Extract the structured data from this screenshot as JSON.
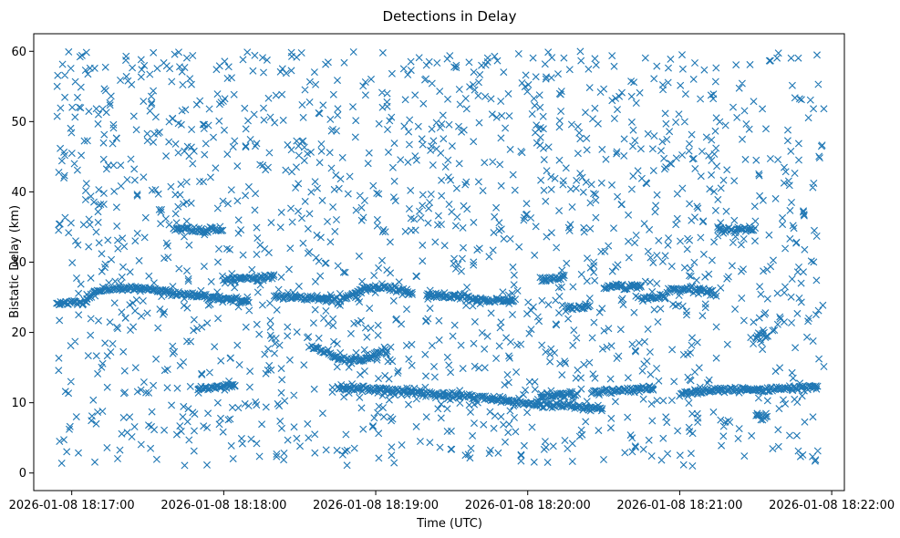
{
  "chart_data": {
    "type": "scatter",
    "title": "Detections in Delay",
    "xlabel": "Time (UTC)",
    "ylabel": "Bistatic Delay (km)",
    "marker": "x",
    "color": "#1f77b4",
    "grid": false,
    "legend": "none",
    "xlim": [
      "2026-01-08 18:16:45",
      "2026-01-08 18:22:05"
    ],
    "ylim": [
      -2.5,
      62.5
    ],
    "xticks": [
      "2026-01-08 18:17:00",
      "2026-01-08 18:18:00",
      "2026-01-08 18:19:00",
      "2026-01-08 18:20:00",
      "2026-01-08 18:21:00",
      "2026-01-08 18:22:00"
    ],
    "yticks": [
      0,
      10,
      20,
      30,
      40,
      50,
      60
    ],
    "x_start": "2026-01-08 18:16:54",
    "x_end": "2026-01-08 18:21:57",
    "tracks": [
      {
        "points": [
          [
            "2026-01-08 18:16:54",
            24.2
          ],
          [
            "2026-01-08 18:17:05",
            24.3
          ],
          [
            "2026-01-08 18:17:10",
            26.0
          ],
          [
            "2026-01-08 18:17:25",
            26.4
          ],
          [
            "2026-01-08 18:17:40",
            25.6
          ],
          [
            "2026-01-08 18:17:55",
            25.0
          ],
          [
            "2026-01-08 18:18:10",
            24.4
          ]
        ],
        "noise": 0.2
      },
      {
        "points": [
          [
            "2026-01-08 18:17:40",
            34.8
          ],
          [
            "2026-01-08 18:18:00",
            34.5
          ]
        ],
        "noise": 0.2
      },
      {
        "points": [
          [
            "2026-01-08 18:17:50",
            12.0
          ],
          [
            "2026-01-08 18:18:05",
            12.5
          ]
        ],
        "noise": 0.15
      },
      {
        "points": [
          [
            "2026-01-08 18:18:00",
            27.4
          ],
          [
            "2026-01-08 18:18:20",
            28.0
          ]
        ],
        "noise": 0.2
      },
      {
        "points": [
          [
            "2026-01-08 18:18:20",
            25.2
          ],
          [
            "2026-01-08 18:18:45",
            24.8
          ]
        ],
        "noise": 0.2
      },
      {
        "points": [
          [
            "2026-01-08 18:18:35",
            18.0
          ],
          [
            "2026-01-08 18:18:45",
            16.3
          ],
          [
            "2026-01-08 18:18:55",
            16.1
          ],
          [
            "2026-01-08 18:19:05",
            17.8
          ]
        ],
        "noise": 0.2
      },
      {
        "points": [
          [
            "2026-01-08 18:18:45",
            24.3
          ],
          [
            "2026-01-08 18:18:55",
            26.2
          ],
          [
            "2026-01-08 18:19:05",
            26.5
          ],
          [
            "2026-01-08 18:19:15",
            25.4
          ]
        ],
        "noise": 0.2
      },
      {
        "points": [
          [
            "2026-01-08 18:18:45",
            12.2
          ],
          [
            "2026-01-08 18:19:10",
            11.7
          ],
          [
            "2026-01-08 18:19:35",
            10.9
          ],
          [
            "2026-01-08 18:19:55",
            10.2
          ],
          [
            "2026-01-08 18:20:10",
            9.6
          ]
        ],
        "noise": 0.25
      },
      {
        "points": [
          [
            "2026-01-08 18:19:20",
            25.3
          ],
          [
            "2026-01-08 18:19:40",
            25.0
          ]
        ],
        "noise": 0.2
      },
      {
        "points": [
          [
            "2026-01-08 18:19:40",
            24.6
          ],
          [
            "2026-01-08 18:19:55",
            24.5
          ]
        ],
        "noise": 0.15
      },
      {
        "points": [
          [
            "2026-01-08 18:20:05",
            27.6
          ],
          [
            "2026-01-08 18:20:15",
            27.9
          ]
        ],
        "noise": 0.2
      },
      {
        "points": [
          [
            "2026-01-08 18:20:15",
            23.5
          ],
          [
            "2026-01-08 18:20:25",
            23.8
          ]
        ],
        "noise": 0.2
      },
      {
        "points": [
          [
            "2026-01-08 18:20:05",
            11.0
          ],
          [
            "2026-01-08 18:20:20",
            11.3
          ]
        ],
        "noise": 0.2
      },
      {
        "points": [
          [
            "2026-01-08 18:20:10",
            9.8
          ],
          [
            "2026-01-08 18:20:30",
            9.1
          ]
        ],
        "noise": 0.2
      },
      {
        "points": [
          [
            "2026-01-08 18:20:30",
            26.5
          ],
          [
            "2026-01-08 18:20:45",
            26.5
          ]
        ],
        "noise": 0.2
      },
      {
        "points": [
          [
            "2026-01-08 18:20:25",
            11.5
          ],
          [
            "2026-01-08 18:20:50",
            12.0
          ]
        ],
        "noise": 0.2
      },
      {
        "points": [
          [
            "2026-01-08 18:20:45",
            24.8
          ],
          [
            "2026-01-08 18:20:55",
            25.0
          ]
        ],
        "noise": 0.2
      },
      {
        "points": [
          [
            "2026-01-08 18:20:55",
            26.0
          ],
          [
            "2026-01-08 18:21:05",
            26.2
          ],
          [
            "2026-01-08 18:21:15",
            25.4
          ]
        ],
        "noise": 0.3
      },
      {
        "points": [
          [
            "2026-01-08 18:21:00",
            11.4
          ],
          [
            "2026-01-08 18:21:20",
            11.8
          ],
          [
            "2026-01-08 18:21:40",
            12.0
          ],
          [
            "2026-01-08 18:21:55",
            12.3
          ]
        ],
        "noise": 0.2
      },
      {
        "points": [
          [
            "2026-01-08 18:21:15",
            34.5
          ],
          [
            "2026-01-08 18:21:30",
            34.8
          ]
        ],
        "noise": 0.2
      },
      {
        "points": [
          [
            "2026-01-08 18:21:30",
            19.5
          ],
          [
            "2026-01-08 18:21:35",
            19.5
          ]
        ],
        "noise": 0.3
      },
      {
        "points": [
          [
            "2026-01-08 18:21:30",
            8.2
          ],
          [
            "2026-01-08 18:21:35",
            8.2
          ]
        ],
        "noise": 0.3
      }
    ]
  }
}
